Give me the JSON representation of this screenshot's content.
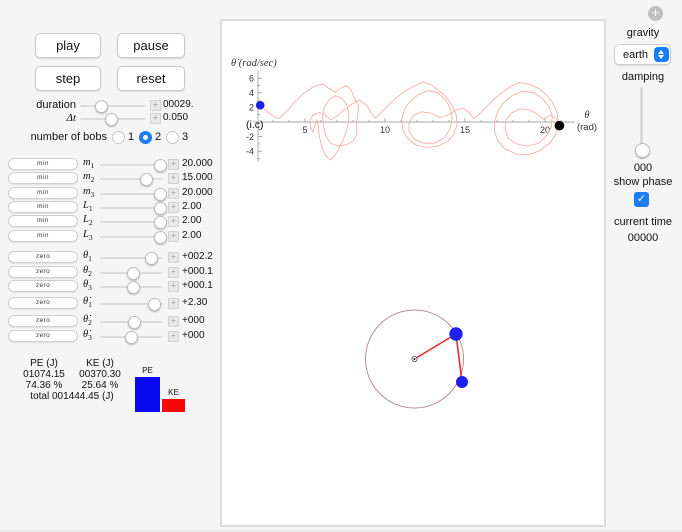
{
  "icons": {
    "plus": "+",
    "check": "✓",
    "window_plus": "+"
  },
  "toolbar": {
    "play": "play",
    "pause": "pause",
    "step": "step",
    "reset": "reset"
  },
  "time_controls": {
    "duration": {
      "label": "duration",
      "value": "00029."
    },
    "dt": {
      "label": "Δt",
      "value": "0.050"
    }
  },
  "bobs": {
    "label": "number of bobs",
    "options": [
      "1",
      "2",
      "3"
    ],
    "selected": "2"
  },
  "sliders": [
    {
      "button": "min",
      "label": "m",
      "sub": "1",
      "value": "20.000"
    },
    {
      "button": "min",
      "label": "m",
      "sub": "2",
      "value": "15.000"
    },
    {
      "button": "min",
      "label": "m",
      "sub": "3",
      "value": "20.000"
    },
    {
      "button": "min",
      "label": "L",
      "sub": "1",
      "value": "2.00"
    },
    {
      "button": "min",
      "label": "L",
      "sub": "2",
      "value": "2.00"
    },
    {
      "button": "min",
      "label": "L",
      "sub": "3",
      "value": "2.00"
    },
    {
      "button": "zero",
      "label": "θ",
      "sub": "1",
      "value": "+002.2"
    },
    {
      "button": "zero",
      "label": "θ",
      "sub": "2",
      "value": "+000.1"
    },
    {
      "button": "zero",
      "label": "θ",
      "sub": "3",
      "value": "+000.1"
    },
    {
      "button": "zero",
      "label": "θ̇",
      "sub": "1",
      "value": "+2.30"
    },
    {
      "button": "zero",
      "label": "θ̇",
      "sub": "2",
      "value": "+000"
    },
    {
      "button": "zero",
      "label": "θ̇",
      "sub": "3",
      "value": "+000"
    }
  ],
  "energy": {
    "pe_header": "PE (J)",
    "ke_header": "KE (J)",
    "pe_value": "01074.15",
    "ke_value": "00370.30",
    "pe_pct": "74.36 %",
    "ke_pct": "25.64 %",
    "total": "total 001444.45 (J)",
    "pe_bar_label": "PE",
    "ke_bar_label": "KE",
    "pe_color": "#0a0af0",
    "ke_color": "#f50a0a"
  },
  "right_panel": {
    "gravity_label": "gravity",
    "gravity_value": "earth",
    "damping_label": "damping",
    "damping_value": "000",
    "show_phase_label": "show phase",
    "show_phase_checked": true,
    "current_time_label": "current time",
    "current_time_value": "00000"
  },
  "pendulum": {
    "bob_color": "#1f1ff0",
    "rod_color": "#ef2b2b",
    "circle_color": "#bb8e8e"
  },
  "chart_data": {
    "type": "line",
    "title": "",
    "xlabel": "θ (rad)",
    "xlabel_line1": "θ",
    "xlabel_line2": "(rad)",
    "ylabel": "θ̇ (rad/sec)",
    "x_ticks": [
      5,
      10,
      15,
      20
    ],
    "y_ticks": [
      6,
      4,
      2,
      -2,
      -4
    ],
    "xlim": [
      2.05,
      21.8
    ],
    "ylim": [
      -5.5,
      6.5
    ],
    "grid": false,
    "legend": "none",
    "initial_condition": {
      "label": "(i.c)",
      "theta": 2.2,
      "theta_dot": 2.3,
      "color": "#1f1ff0"
    },
    "current_point": {
      "theta": 20.9,
      "theta_dot": -0.5,
      "color": "#000000"
    },
    "series": [
      {
        "name": "phase trajectory",
        "color": "#f5a79e",
        "points": [
          [
            2.2,
            2.3
          ],
          [
            2.6,
            1.5
          ],
          [
            3.0,
            0.8
          ],
          [
            3.35,
            0.45
          ],
          [
            3.8,
            1.3
          ],
          [
            4.3,
            2.6
          ],
          [
            4.9,
            3.9
          ],
          [
            5.5,
            4.8
          ],
          [
            6.1,
            5.2
          ],
          [
            6.5,
            4.6
          ],
          [
            6.9,
            4.1
          ],
          [
            7.3,
            4.7
          ],
          [
            7.6,
            5.0
          ],
          [
            7.9,
            4.3
          ],
          [
            8.1,
            3.2
          ],
          [
            8.35,
            2.2
          ],
          [
            8.3,
            1.0
          ],
          [
            8.2,
            -0.2
          ],
          [
            8.25,
            -1.6
          ],
          [
            8.0,
            -2.6
          ],
          [
            7.6,
            -3.1
          ],
          [
            7.1,
            -3.3
          ],
          [
            6.6,
            -2.9
          ],
          [
            6.3,
            -1.9
          ],
          [
            6.15,
            -0.6
          ],
          [
            6.1,
            0.8
          ],
          [
            6.2,
            2.0
          ],
          [
            6.5,
            3.0
          ],
          [
            6.9,
            3.6
          ],
          [
            7.3,
            3.3
          ],
          [
            7.6,
            2.4
          ],
          [
            7.75,
            1.2
          ],
          [
            7.7,
            -0.3
          ],
          [
            7.5,
            -1.8
          ],
          [
            7.2,
            -3.3
          ],
          [
            6.9,
            -4.5
          ],
          [
            6.6,
            -5.2
          ],
          [
            6.3,
            -4.6
          ],
          [
            6.05,
            -3.4
          ],
          [
            5.9,
            -2.0
          ],
          [
            5.85,
            -0.7
          ],
          [
            5.75,
            0.3
          ],
          [
            5.6,
            -0.5
          ],
          [
            5.5,
            -1.4
          ],
          [
            5.35,
            -0.8
          ],
          [
            5.3,
            0.2
          ],
          [
            5.5,
            1.0
          ],
          [
            5.9,
            1.3
          ],
          [
            6.3,
            0.9
          ],
          [
            6.6,
            0.3
          ],
          [
            7.0,
            0.8
          ],
          [
            7.4,
            1.6
          ],
          [
            7.9,
            2.4
          ],
          [
            8.4,
            3.0
          ],
          [
            8.9,
            2.2
          ],
          [
            9.2,
            1.0
          ],
          [
            9.4,
            0.5
          ],
          [
            9.8,
            1.4
          ],
          [
            10.3,
            2.5
          ],
          [
            10.8,
            3.5
          ],
          [
            11.3,
            4.3
          ],
          [
            11.9,
            5.0
          ],
          [
            12.4,
            5.5
          ],
          [
            12.9,
            5.1
          ],
          [
            13.3,
            4.4
          ],
          [
            13.8,
            3.5
          ],
          [
            14.2,
            2.3
          ],
          [
            14.45,
            1.0
          ],
          [
            14.5,
            -0.4
          ],
          [
            14.3,
            -1.7
          ],
          [
            13.9,
            -2.7
          ],
          [
            13.3,
            -3.3
          ],
          [
            12.6,
            -3.5
          ],
          [
            11.9,
            -3.1
          ],
          [
            11.4,
            -2.2
          ],
          [
            11.1,
            -1.0
          ],
          [
            11.05,
            0.4
          ],
          [
            11.2,
            1.7
          ],
          [
            11.6,
            2.9
          ],
          [
            12.1,
            3.8
          ],
          [
            12.7,
            4.3
          ],
          [
            13.3,
            4.0
          ],
          [
            13.8,
            3.0
          ],
          [
            14.1,
            1.8
          ],
          [
            14.2,
            0.4
          ],
          [
            14.05,
            -1.0
          ],
          [
            13.7,
            -2.2
          ],
          [
            13.1,
            -2.9
          ],
          [
            12.4,
            -2.9
          ],
          [
            11.8,
            -2.3
          ],
          [
            11.5,
            -1.2
          ],
          [
            11.5,
            -0.1
          ],
          [
            11.8,
            0.9
          ],
          [
            12.3,
            1.4
          ],
          [
            12.9,
            1.2
          ],
          [
            13.4,
            0.6
          ],
          [
            13.9,
            0.9
          ],
          [
            14.4,
            1.6
          ],
          [
            14.9,
            1.9
          ],
          [
            15.3,
            1.2
          ],
          [
            15.55,
            0.5
          ],
          [
            15.9,
            1.1
          ],
          [
            16.4,
            2.2
          ],
          [
            16.9,
            3.3
          ],
          [
            17.4,
            4.2
          ],
          [
            17.9,
            4.9
          ],
          [
            18.4,
            5.4
          ],
          [
            19.0,
            5.2
          ],
          [
            19.6,
            4.6
          ],
          [
            20.1,
            3.7
          ],
          [
            20.5,
            2.6
          ],
          [
            20.75,
            1.3
          ],
          [
            20.85,
            -0.1
          ],
          [
            20.7,
            -1.6
          ],
          [
            20.3,
            -2.9
          ],
          [
            19.7,
            -3.9
          ],
          [
            19.0,
            -4.5
          ],
          [
            18.2,
            -4.4
          ],
          [
            17.5,
            -3.7
          ],
          [
            17.05,
            -2.6
          ],
          [
            16.85,
            -1.3
          ],
          [
            16.85,
            0.1
          ],
          [
            17.05,
            1.5
          ],
          [
            17.45,
            2.7
          ],
          [
            18.0,
            3.7
          ],
          [
            18.6,
            4.2
          ],
          [
            19.3,
            4.0
          ],
          [
            19.85,
            3.2
          ],
          [
            20.25,
            2.1
          ],
          [
            20.45,
            0.8
          ],
          [
            20.4,
            -0.6
          ],
          [
            20.1,
            -1.9
          ],
          [
            19.6,
            -2.9
          ],
          [
            18.9,
            -3.3
          ],
          [
            18.2,
            -3.0
          ],
          [
            17.7,
            -2.2
          ],
          [
            17.5,
            -1.0
          ],
          [
            17.55,
            0.2
          ],
          [
            17.9,
            1.2
          ],
          [
            18.4,
            1.8
          ],
          [
            19.0,
            1.7
          ],
          [
            19.5,
            1.1
          ],
          [
            19.9,
            0.4
          ],
          [
            20.3,
            0.9
          ],
          [
            20.7,
            0.5
          ],
          [
            20.9,
            -0.5
          ]
        ]
      }
    ]
  }
}
